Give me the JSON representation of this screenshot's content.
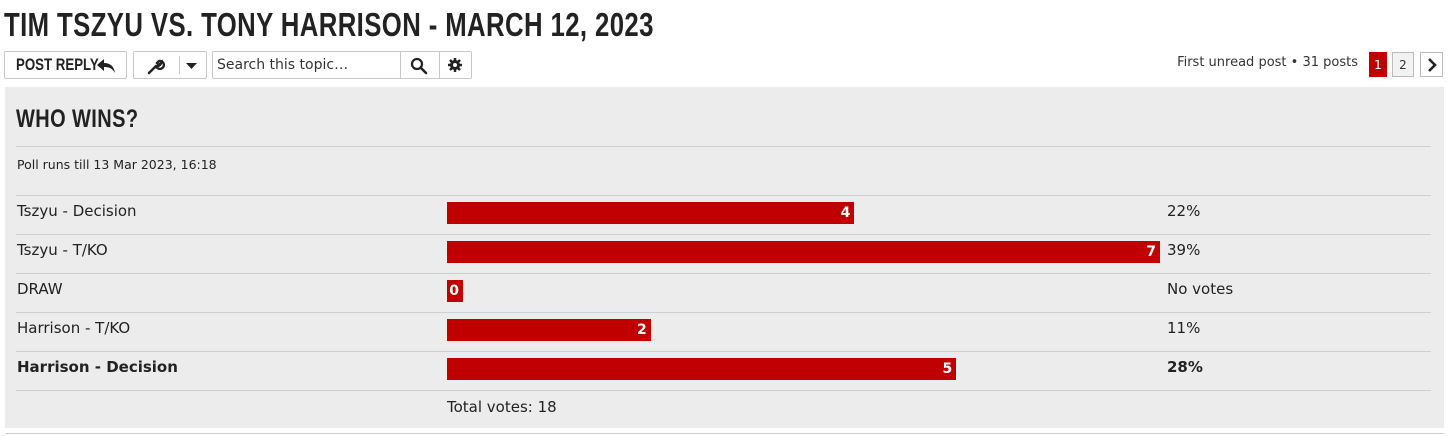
{
  "header": {
    "title": "TIM TSZYU VS. TONY HARRISON - MARCH 12, 2023"
  },
  "toolbar": {
    "post_reply": "POST REPLY",
    "search_placeholder": "Search this topic…"
  },
  "pagination": {
    "first_unread": "First unread post",
    "separator": "•",
    "posts": "31 posts",
    "pages": [
      "1",
      "2"
    ],
    "current": 0
  },
  "poll": {
    "title": "WHO WINS?",
    "ends": "Poll runs till 13 Mar 2023, 16:18",
    "options": [
      {
        "label": "Tszyu - Decision",
        "votes": 4,
        "percent": "22%",
        "voted": false
      },
      {
        "label": "Tszyu - T/KO",
        "votes": 7,
        "percent": "39%",
        "voted": false
      },
      {
        "label": "DRAW",
        "votes": 0,
        "percent": "No votes",
        "voted": false
      },
      {
        "label": "Harrison - T/KO",
        "votes": 2,
        "percent": "11%",
        "voted": false
      },
      {
        "label": "Harrison - Decision",
        "votes": 5,
        "percent": "28%",
        "voted": true
      }
    ],
    "total": "Total votes: 18"
  }
}
